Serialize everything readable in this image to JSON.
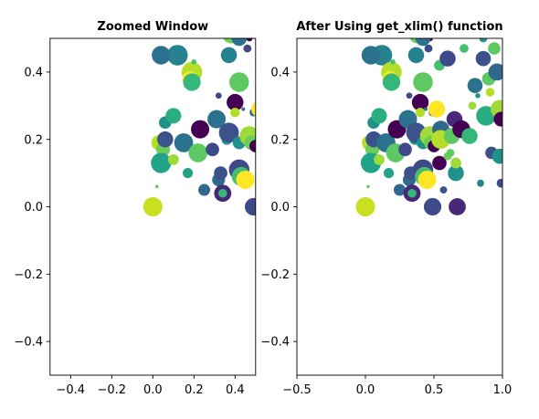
{
  "chart_data": [
    {
      "type": "scatter",
      "title": "Zoomed Window",
      "xlabel": "",
      "ylabel": "",
      "xlim": [
        -0.5,
        0.5
      ],
      "ylim": [
        -0.5,
        0.5
      ],
      "xticks": [
        "−0.4",
        "−0.2",
        "0.0",
        "0.2",
        "0.4"
      ],
      "yticks": [
        "−0.4",
        "−0.2",
        "0.0",
        "0.2",
        "0.4"
      ],
      "grid": false
    },
    {
      "type": "scatter",
      "title": "After Using get_xlim() function",
      "xlabel": "",
      "ylabel": "",
      "xlim": [
        -0.5,
        1.0
      ],
      "ylim": [
        -0.5,
        0.5
      ],
      "xticks": [
        "−0.5",
        "0.0",
        "0.5",
        "1.0"
      ],
      "yticks": [
        "−0.4",
        "−0.2",
        "0.0",
        "0.2",
        "0.4"
      ],
      "grid": false
    }
  ],
  "points": [
    {
      "x": 0.0,
      "y": 0.0,
      "size": 290,
      "color": "#c8e020"
    },
    {
      "x": 0.02,
      "y": 0.06,
      "size": 8,
      "color": "#5ec962"
    },
    {
      "x": 0.03,
      "y": 0.19,
      "size": 180,
      "color": "#b5de2b"
    },
    {
      "x": 0.05,
      "y": 0.17,
      "size": 150,
      "color": "#6ccd5a"
    },
    {
      "x": 0.06,
      "y": 0.25,
      "size": 120,
      "color": "#21918c"
    },
    {
      "x": 0.06,
      "y": 0.2,
      "size": 200,
      "color": "#3b528b"
    },
    {
      "x": 0.04,
      "y": 0.13,
      "size": 320,
      "color": "#20a386"
    },
    {
      "x": 0.1,
      "y": 0.14,
      "size": 90,
      "color": "#a0da39"
    },
    {
      "x": 0.1,
      "y": 0.27,
      "size": 190,
      "color": "#28ae80"
    },
    {
      "x": 0.12,
      "y": 0.45,
      "size": 330,
      "color": "#26828e"
    },
    {
      "x": 0.04,
      "y": 0.45,
      "size": 270,
      "color": "#2c728e"
    },
    {
      "x": 0.15,
      "y": 0.19,
      "size": 280,
      "color": "#2c728e"
    },
    {
      "x": 0.17,
      "y": 0.1,
      "size": 80,
      "color": "#20a386"
    },
    {
      "x": 0.19,
      "y": 0.4,
      "size": 330,
      "color": "#b5de2b"
    },
    {
      "x": 0.18,
      "y": 0.38,
      "size": 180,
      "color": "#fde725"
    },
    {
      "x": 0.19,
      "y": 0.37,
      "size": 240,
      "color": "#35b779"
    },
    {
      "x": 0.22,
      "y": 0.16,
      "size": 280,
      "color": "#5ec962"
    },
    {
      "x": 0.23,
      "y": 0.23,
      "size": 260,
      "color": "#440154"
    },
    {
      "x": 0.2,
      "y": 0.43,
      "size": 20,
      "color": "#44bf70"
    },
    {
      "x": 0.25,
      "y": 0.05,
      "size": 110,
      "color": "#31688e"
    },
    {
      "x": 0.29,
      "y": 0.17,
      "size": 140,
      "color": "#3e4a89"
    },
    {
      "x": 0.31,
      "y": 0.26,
      "size": 260,
      "color": "#2c728e"
    },
    {
      "x": 0.32,
      "y": 0.33,
      "size": 30,
      "color": "#3e4a89"
    },
    {
      "x": 0.32,
      "y": 0.08,
      "size": 130,
      "color": "#31688e"
    },
    {
      "x": 0.33,
      "y": 0.1,
      "size": 140,
      "color": "#3b528b"
    },
    {
      "x": 0.34,
      "y": 0.04,
      "size": 230,
      "color": "#482878"
    },
    {
      "x": 0.34,
      "y": 0.04,
      "size": 60,
      "color": "#35b779"
    },
    {
      "x": 0.36,
      "y": 0.45,
      "size": 60,
      "color": "#fde725"
    },
    {
      "x": 0.36,
      "y": 0.2,
      "size": 90,
      "color": "#21918c"
    },
    {
      "x": 0.37,
      "y": 0.45,
      "size": 200,
      "color": "#26828e"
    },
    {
      "x": 0.37,
      "y": 0.22,
      "size": 310,
      "color": "#3b528b"
    },
    {
      "x": 0.38,
      "y": 0.51,
      "size": 220,
      "color": "#6ccd5a"
    },
    {
      "x": 0.4,
      "y": 0.31,
      "size": 220,
      "color": "#440154"
    },
    {
      "x": 0.4,
      "y": 0.28,
      "size": 70,
      "color": "#b5de2b"
    },
    {
      "x": 0.42,
      "y": 0.37,
      "size": 300,
      "color": "#5ec962"
    },
    {
      "x": 0.42,
      "y": 0.19,
      "size": 130,
      "color": "#21918c"
    },
    {
      "x": 0.42,
      "y": 0.11,
      "size": 330,
      "color": "#3e4a89"
    },
    {
      "x": 0.43,
      "y": 0.09,
      "size": 280,
      "color": "#44bf70"
    },
    {
      "x": 0.44,
      "y": 0.29,
      "size": 10,
      "color": "#2c728e"
    },
    {
      "x": 0.45,
      "y": 0.08,
      "size": 260,
      "color": "#fde725"
    },
    {
      "x": 0.47,
      "y": 0.21,
      "size": 300,
      "color": "#a0da39"
    },
    {
      "x": 0.47,
      "y": 0.5,
      "size": 30,
      "color": "#440154"
    },
    {
      "x": 0.48,
      "y": 0.19,
      "size": 160,
      "color": "#6ccd5a"
    },
    {
      "x": 0.49,
      "y": 0.0,
      "size": 240,
      "color": "#3e4a89"
    },
    {
      "x": 0.49,
      "y": 0.28,
      "size": 50,
      "color": "#31688e"
    },
    {
      "x": 0.5,
      "y": 0.18,
      "size": 120,
      "color": "#440154"
    },
    {
      "x": 0.25,
      "y": 0.52,
      "size": 80,
      "color": "#35b779"
    },
    {
      "x": 0.42,
      "y": 0.5,
      "size": 180,
      "color": "#2c728e"
    },
    {
      "x": 0.46,
      "y": 0.47,
      "size": 50,
      "color": "#3e4a89"
    },
    {
      "x": 0.48,
      "y": 0.52,
      "size": 120,
      "color": "#fde725"
    },
    {
      "x": 0.52,
      "y": 0.29,
      "size": 220,
      "color": "#fde725"
    },
    {
      "x": 0.54,
      "y": 0.42,
      "size": 90,
      "color": "#44bf70"
    },
    {
      "x": 0.55,
      "y": 0.23,
      "size": 230,
      "color": "#31688e"
    },
    {
      "x": 0.55,
      "y": 0.2,
      "size": 280,
      "color": "#b5de2b"
    },
    {
      "x": 0.54,
      "y": 0.13,
      "size": 160,
      "color": "#440154"
    },
    {
      "x": 0.57,
      "y": 0.05,
      "size": 40,
      "color": "#3b528b"
    },
    {
      "x": 0.6,
      "y": 0.44,
      "size": 200,
      "color": "#3e4a89"
    },
    {
      "x": 0.6,
      "y": 0.15,
      "size": 50,
      "color": "#6ccd5a"
    },
    {
      "x": 0.62,
      "y": 0.16,
      "size": 50,
      "color": "#5ec962"
    },
    {
      "x": 0.63,
      "y": 0.21,
      "size": 200,
      "color": "#5ec962"
    },
    {
      "x": 0.65,
      "y": 0.26,
      "size": 200,
      "color": "#482878"
    },
    {
      "x": 0.66,
      "y": 0.1,
      "size": 200,
      "color": "#21918c"
    },
    {
      "x": 0.66,
      "y": 0.13,
      "size": 90,
      "color": "#a0da39"
    },
    {
      "x": 0.67,
      "y": 0.0,
      "size": 230,
      "color": "#482878"
    },
    {
      "x": 0.7,
      "y": 0.23,
      "size": 250,
      "color": "#440154"
    },
    {
      "x": 0.72,
      "y": 0.47,
      "size": 60,
      "color": "#44bf70"
    },
    {
      "x": 0.76,
      "y": 0.21,
      "size": 200,
      "color": "#35b779"
    },
    {
      "x": 0.78,
      "y": 0.3,
      "size": 50,
      "color": "#a0da39"
    },
    {
      "x": 0.8,
      "y": 0.36,
      "size": 180,
      "color": "#2c728e"
    },
    {
      "x": 0.82,
      "y": 0.33,
      "size": 20,
      "color": "#21918c"
    },
    {
      "x": 0.84,
      "y": 0.07,
      "size": 40,
      "color": "#26828e"
    },
    {
      "x": 0.86,
      "y": 0.44,
      "size": 180,
      "color": "#3b528b"
    },
    {
      "x": 0.88,
      "y": 0.27,
      "size": 300,
      "color": "#28ae80"
    },
    {
      "x": 0.9,
      "y": 0.38,
      "size": 140,
      "color": "#5ec962"
    },
    {
      "x": 0.91,
      "y": 0.34,
      "size": 60,
      "color": "#b5de2b"
    },
    {
      "x": 0.92,
      "y": 0.16,
      "size": 120,
      "color": "#3b528b"
    },
    {
      "x": 0.94,
      "y": 0.47,
      "size": 120,
      "color": "#5ec962"
    },
    {
      "x": 0.96,
      "y": 0.4,
      "size": 230,
      "color": "#31688e"
    },
    {
      "x": 0.98,
      "y": 0.29,
      "size": 260,
      "color": "#a0da39"
    },
    {
      "x": 0.98,
      "y": 0.15,
      "size": 180,
      "color": "#21918c"
    },
    {
      "x": 0.99,
      "y": 0.07,
      "size": 60,
      "color": "#3e4a89"
    },
    {
      "x": 0.99,
      "y": 0.26,
      "size": 170,
      "color": "#440154"
    },
    {
      "x": 0.86,
      "y": 0.5,
      "size": 50,
      "color": "#21918c"
    }
  ]
}
